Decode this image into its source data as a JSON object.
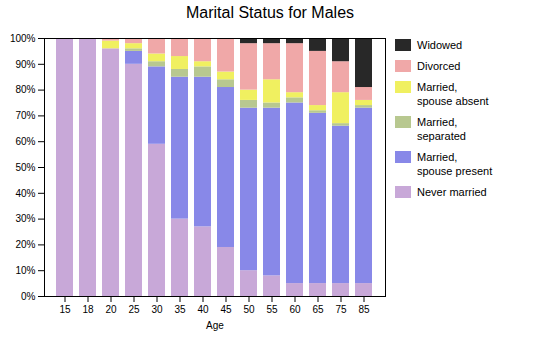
{
  "chart_data": {
    "type": "bar",
    "title": "Marital Status for Males",
    "xlabel": "Age",
    "categories": [
      "15",
      "18",
      "20",
      "25",
      "30",
      "35",
      "40",
      "45",
      "50",
      "55",
      "60",
      "65",
      "75",
      "85"
    ],
    "series": [
      {
        "name": "Never married",
        "color": "#c8a8d8",
        "values": [
          100,
          100,
          96,
          90,
          59,
          30,
          27,
          19,
          10,
          8,
          5,
          5,
          5,
          5
        ]
      },
      {
        "name": "Married,\nspouse present",
        "color": "#8888e8",
        "values": [
          0,
          0,
          0,
          5,
          30,
          55,
          58,
          62,
          63,
          65,
          70,
          66,
          61,
          68
        ]
      },
      {
        "name": "Married,\nseparated",
        "color": "#b8c890",
        "values": [
          0,
          0,
          0,
          1,
          2,
          3,
          4,
          3,
          3,
          2,
          2,
          1,
          1,
          1
        ]
      },
      {
        "name": "Married,\nspouse absent",
        "color": "#f0f060",
        "values": [
          0,
          0,
          3,
          2,
          3,
          5,
          2,
          3,
          4,
          9,
          2,
          2,
          12,
          2
        ]
      },
      {
        "name": "Divorced",
        "color": "#f0a8a8",
        "values": [
          0,
          0,
          1,
          2,
          6,
          7,
          9,
          13,
          18,
          14,
          19,
          21,
          12,
          5
        ]
      },
      {
        "name": "Widowed",
        "color": "#282828",
        "values": [
          0,
          0,
          0,
          0,
          0,
          0,
          0,
          0,
          2,
          2,
          2,
          5,
          9,
          19
        ]
      }
    ],
    "ylim": [
      0,
      100
    ],
    "yticks": [
      {
        "value": 0,
        "label": "0%"
      },
      {
        "value": 10,
        "label": "10%"
      },
      {
        "value": 20,
        "label": "20%"
      },
      {
        "value": 30,
        "label": "30%"
      },
      {
        "value": 40,
        "label": "40%"
      },
      {
        "value": 50,
        "label": "50%"
      },
      {
        "value": 60,
        "label": "60%"
      },
      {
        "value": 70,
        "label": "70%"
      },
      {
        "value": 80,
        "label": "80%"
      },
      {
        "value": 90,
        "label": "90%"
      },
      {
        "value": 100,
        "label": "100%"
      }
    ],
    "stacked": true,
    "grid": false,
    "legend": "right"
  }
}
